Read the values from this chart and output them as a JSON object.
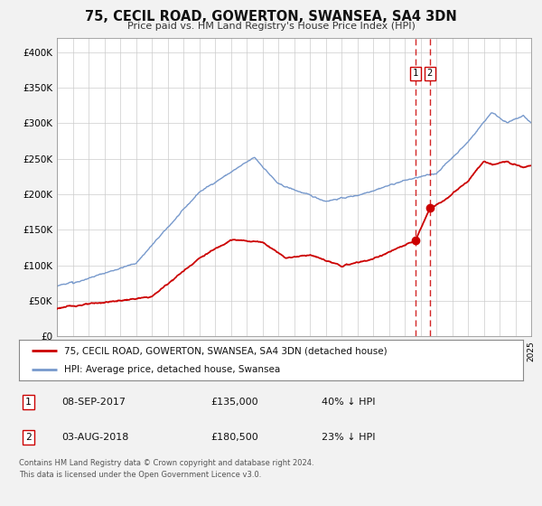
{
  "title": "75, CECIL ROAD, GOWERTON, SWANSEA, SA4 3DN",
  "subtitle": "Price paid vs. HM Land Registry's House Price Index (HPI)",
  "red_label": "75, CECIL ROAD, GOWERTON, SWANSEA, SA4 3DN (detached house)",
  "blue_label": "HPI: Average price, detached house, Swansea",
  "red_color": "#cc0000",
  "blue_color": "#7799cc",
  "marker_color": "#cc0000",
  "vline_color": "#cc0000",
  "transaction1_date": 2017.69,
  "transaction2_date": 2018.59,
  "transaction1_price": 135000,
  "transaction2_price": 180500,
  "transaction1_label": "08-SEP-2017",
  "transaction2_label": "03-AUG-2018",
  "transaction1_pct": "40% ↓ HPI",
  "transaction2_pct": "23% ↓ HPI",
  "footnote1": "Contains HM Land Registry data © Crown copyright and database right 2024.",
  "footnote2": "This data is licensed under the Open Government Licence v3.0.",
  "xlim": [
    1995,
    2025
  ],
  "ylim": [
    0,
    420000
  ],
  "yticks": [
    0,
    50000,
    100000,
    150000,
    200000,
    250000,
    300000,
    350000,
    400000
  ],
  "ytick_labels": [
    "£0",
    "£50K",
    "£100K",
    "£150K",
    "£200K",
    "£250K",
    "£300K",
    "£350K",
    "£400K"
  ],
  "bg_color": "#f2f2f2",
  "plot_bg_color": "#ffffff"
}
